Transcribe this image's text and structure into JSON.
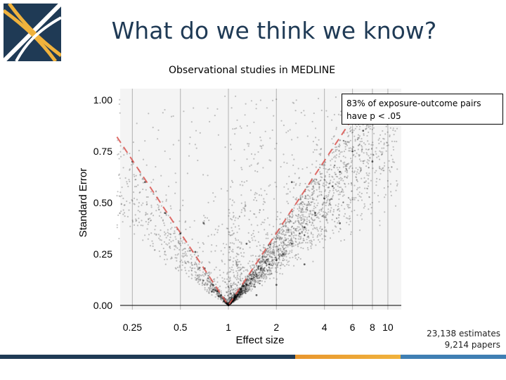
{
  "slide": {
    "title": "What do we think we know?",
    "subtitle": "Observational studies in MEDLINE",
    "callout_line1": "83% of exposure-outcome pairs",
    "callout_line2": "have p < .05",
    "footnote_line1": "23,138 estimates",
    "footnote_line2": "9,214 papers",
    "colors": {
      "title": "#1f3a55",
      "bar_navy": "#1f3a55",
      "bar_orange": "#e8962e",
      "bar_blue": "#3f7fb3",
      "logo_bg": "#1f3a55",
      "logo_accent": "#f0b23c"
    }
  },
  "chart_data": {
    "type": "scatter",
    "title": "",
    "xlabel": "Effect size",
    "ylabel": "Standard Error",
    "x_scale": "log",
    "x_ticks": [
      "0.25",
      "0.5",
      "1",
      "2",
      "4",
      "6",
      "8",
      "10"
    ],
    "x_tick_values": [
      0.25,
      0.5,
      1,
      2,
      4,
      6,
      8,
      10
    ],
    "y_ticks": [
      "0.00",
      "0.25",
      "0.50",
      "0.75",
      "1.00"
    ],
    "y_tick_values": [
      0,
      0.25,
      0.5,
      0.75,
      1.0
    ],
    "xlim": [
      0.2,
      11.5
    ],
    "ylim": [
      0,
      1.05
    ],
    "grid": "vertical",
    "reference_lines": [
      {
        "description": "p = .05 boundary",
        "points": [
          [
            0.2,
            0.82
          ],
          [
            1,
            0
          ],
          [
            6,
            0.91
          ]
        ]
      }
    ],
    "point_count": 23138,
    "points": [
      [
        0.62,
        0.26
      ],
      [
        0.71,
        0.18
      ],
      [
        0.8,
        0.1
      ],
      [
        0.85,
        0.07
      ],
      [
        0.9,
        0.05
      ],
      [
        0.95,
        0.03
      ],
      [
        1.05,
        0.03
      ],
      [
        1.1,
        0.05
      ],
      [
        1.2,
        0.08
      ],
      [
        1.3,
        0.1
      ],
      [
        1.4,
        0.13
      ],
      [
        1.5,
        0.15
      ],
      [
        1.6,
        0.18
      ],
      [
        1.8,
        0.2
      ],
      [
        2.0,
        0.22
      ],
      [
        2.2,
        0.25
      ],
      [
        2.5,
        0.3
      ],
      [
        2.8,
        0.35
      ],
      [
        3.0,
        0.38
      ],
      [
        3.5,
        0.45
      ],
      [
        4.0,
        0.52
      ],
      [
        4.5,
        0.58
      ],
      [
        5.0,
        0.65
      ],
      [
        6.0,
        0.75
      ],
      [
        7.0,
        0.85
      ],
      [
        8.0,
        0.9
      ],
      [
        9.0,
        0.95
      ],
      [
        10.0,
        0.98
      ],
      [
        0.5,
        0.35
      ],
      [
        0.4,
        0.45
      ],
      [
        0.3,
        0.6
      ],
      [
        0.25,
        0.7
      ],
      [
        1.5,
        0.05
      ],
      [
        2.0,
        0.1
      ],
      [
        3.0,
        0.2
      ],
      [
        1.3,
        0.3
      ],
      [
        0.7,
        0.4
      ],
      [
        2.5,
        0.6
      ],
      [
        5.0,
        0.4
      ],
      [
        8.0,
        0.7
      ]
    ]
  }
}
